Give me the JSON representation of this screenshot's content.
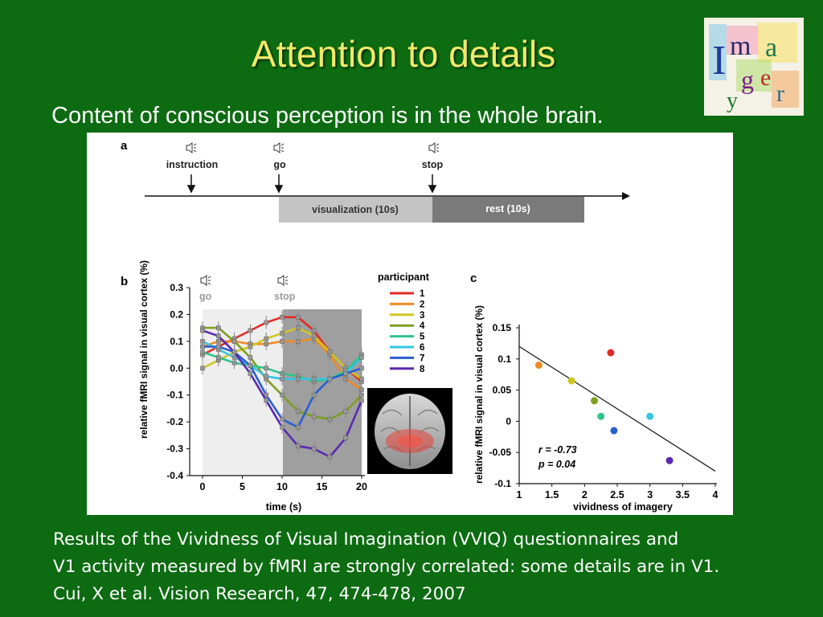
{
  "slide": {
    "title": "Attention to details",
    "subtitle": "Content of conscious perception is in the whole brain.",
    "logo_text": "Imagery",
    "caption": [
      "Results of the Vividness of Visual Imagination (VVIQ) questionnaires and",
      "V1 activity measured by fMRI are strongly correlated: some details are in V1.",
      "Cui, X et al. Vision Research, 47, 474-478, 2007"
    ]
  },
  "colors": {
    "background": "#0d6b12",
    "title": "#f2e86a"
  },
  "figure": {
    "panel_a": {
      "label": "a",
      "events": [
        "instruction",
        "go",
        "stop"
      ],
      "icon": "speaker-icon",
      "blocks": [
        "visualization (10s)",
        "rest (10s)"
      ]
    },
    "panel_b": {
      "label": "b",
      "go_label": "go",
      "stop_label": "stop",
      "legend_title": "participant",
      "inset": "brain-render-image"
    },
    "panel_c": {
      "label": "c",
      "stat_r": "r = -0.73",
      "stat_p": "p = 0.04"
    }
  },
  "chart_data": [
    {
      "type": "line",
      "xlabel": "time (s)",
      "ylabel": "relative fMRI signal in visual cortex (%)",
      "xlim": [
        0,
        20
      ],
      "ylim": [
        -0.4,
        0.3
      ],
      "x_ticks": [
        0,
        5,
        10,
        15,
        20
      ],
      "y_ticks": [
        0.3,
        0.2,
        0.1,
        0.0,
        -0.1,
        -0.2,
        -0.3,
        -0.4
      ],
      "y_tick_labels": [
        "0.3",
        "0.2",
        "0.1",
        "0.0",
        "-0.1",
        "-0.2",
        "-0.3",
        "-0.4"
      ],
      "x": [
        0,
        2,
        4,
        6,
        8,
        10,
        12,
        14,
        16,
        18,
        20
      ],
      "series": [
        {
          "name": "1",
          "color": "#e32b24",
          "values": [
            0.05,
            0.08,
            0.11,
            0.14,
            0.17,
            0.19,
            0.19,
            0.14,
            0.06,
            0.0,
            -0.05
          ]
        },
        {
          "name": "2",
          "color": "#f08a24",
          "values": [
            0.08,
            0.1,
            0.1,
            0.09,
            0.09,
            0.1,
            0.1,
            0.11,
            0.05,
            -0.04,
            -0.08
          ]
        },
        {
          "name": "3",
          "color": "#cfc624",
          "values": [
            0.0,
            0.03,
            0.06,
            0.08,
            0.11,
            0.13,
            0.15,
            0.12,
            0.06,
            0.0,
            -0.04
          ]
        },
        {
          "name": "4",
          "color": "#7f9f20",
          "values": [
            0.15,
            0.15,
            0.1,
            0.04,
            -0.04,
            -0.1,
            -0.16,
            -0.18,
            -0.19,
            -0.16,
            -0.1
          ]
        },
        {
          "name": "5",
          "color": "#2fc48a",
          "values": [
            0.06,
            0.04,
            0.02,
            0.01,
            0.0,
            -0.02,
            -0.03,
            -0.05,
            -0.04,
            -0.01,
            0.05
          ]
        },
        {
          "name": "6",
          "color": "#35c5e3",
          "values": [
            0.1,
            0.07,
            0.04,
            0.01,
            -0.03,
            -0.04,
            -0.04,
            -0.04,
            -0.04,
            -0.02,
            0.04
          ]
        },
        {
          "name": "7",
          "color": "#2a5fd0",
          "values": [
            0.08,
            0.08,
            0.06,
            0.01,
            -0.1,
            -0.19,
            -0.22,
            -0.1,
            -0.04,
            -0.02,
            0.0
          ]
        },
        {
          "name": "8",
          "color": "#5a2ab0",
          "values": [
            0.14,
            0.12,
            0.06,
            -0.02,
            -0.12,
            -0.22,
            -0.29,
            -0.3,
            -0.33,
            -0.26,
            -0.12
          ]
        }
      ]
    },
    {
      "type": "scatter",
      "xlabel": "vividness of imagery",
      "ylabel": "relative fMRI signal in visual cortex (%)",
      "xlim": [
        1,
        4
      ],
      "ylim": [
        -0.1,
        0.15
      ],
      "x_ticks": [
        1,
        1.5,
        2,
        2.5,
        3,
        3.5,
        4
      ],
      "x_tick_labels": [
        "1",
        "1.5",
        "2",
        "2.5",
        "3",
        "3.5",
        "4"
      ],
      "y_ticks": [
        0.15,
        0.1,
        0.05,
        0,
        -0.05,
        -0.1
      ],
      "y_tick_labels": [
        "0.15",
        "0.1",
        "0.05",
        "0",
        "-0.05",
        "-0.1"
      ],
      "points": [
        {
          "x": 2.4,
          "y": 0.11,
          "color": "#e32b24"
        },
        {
          "x": 1.3,
          "y": 0.09,
          "color": "#f08a24"
        },
        {
          "x": 1.8,
          "y": 0.065,
          "color": "#cfc624"
        },
        {
          "x": 2.15,
          "y": 0.033,
          "color": "#7f9f20"
        },
        {
          "x": 2.25,
          "y": 0.008,
          "color": "#2fc48a"
        },
        {
          "x": 3.0,
          "y": 0.008,
          "color": "#35c5e3"
        },
        {
          "x": 2.45,
          "y": -0.015,
          "color": "#2a5fd0"
        },
        {
          "x": 3.3,
          "y": -0.063,
          "color": "#5a2ab0"
        }
      ],
      "fit_line": {
        "x": [
          1,
          4
        ],
        "y": [
          0.12,
          -0.08
        ]
      }
    }
  ]
}
